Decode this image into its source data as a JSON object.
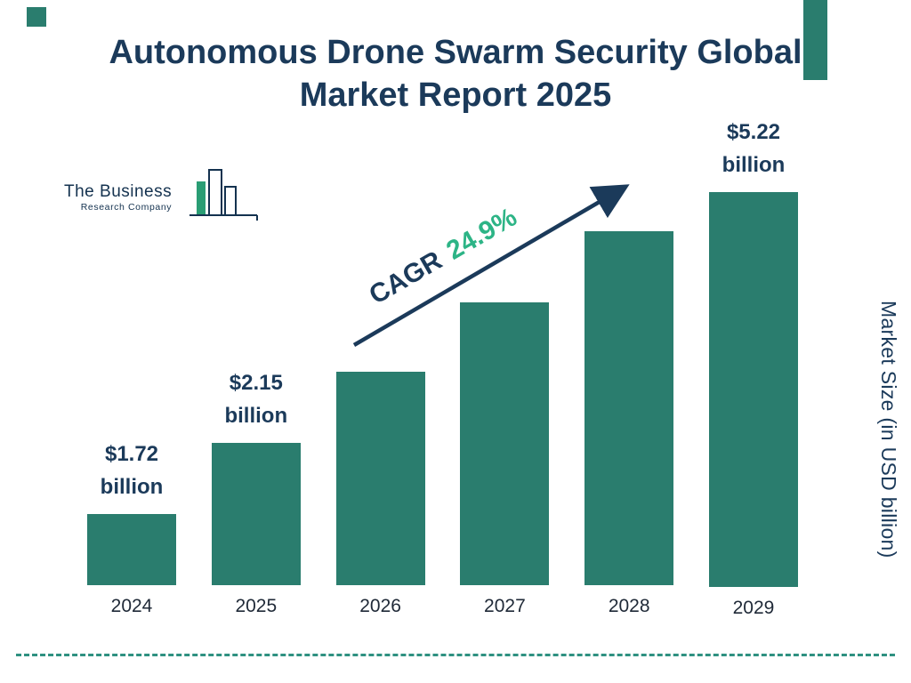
{
  "title": {
    "line1": "Autonomous Drone Swarm Security Global",
    "line2": "Market Report 2025"
  },
  "logo": {
    "name_line1": "The Business",
    "name_line2": "Research Company"
  },
  "cagr": {
    "prefix": "CAGR",
    "value": "24.9%"
  },
  "y_axis_label": "Market Size (in USD billion)",
  "colors": {
    "bar": "#2a7d6e",
    "navy": "#1b3a5a",
    "green": "#2db486",
    "dashed": "#2f9181",
    "accent": "#2a7d6e"
  },
  "chart_data": {
    "type": "bar",
    "title": "Autonomous Drone Swarm Security Global Market Report 2025",
    "categories": [
      "2024",
      "2025",
      "2026",
      "2027",
      "2028",
      "2029"
    ],
    "values": [
      1.72,
      2.15,
      2.69,
      3.35,
      4.19,
      5.22
    ],
    "value_labels": [
      [
        "$1.72",
        "billion"
      ],
      [
        "$2.15",
        "billion"
      ],
      null,
      null,
      null,
      [
        "$5.22",
        "billion"
      ]
    ],
    "xlabel": "",
    "ylabel": "Market Size (in USD billion)",
    "ylim": [
      0,
      5.5
    ],
    "cagr": "24.9%",
    "grid": false,
    "legend": false
  }
}
